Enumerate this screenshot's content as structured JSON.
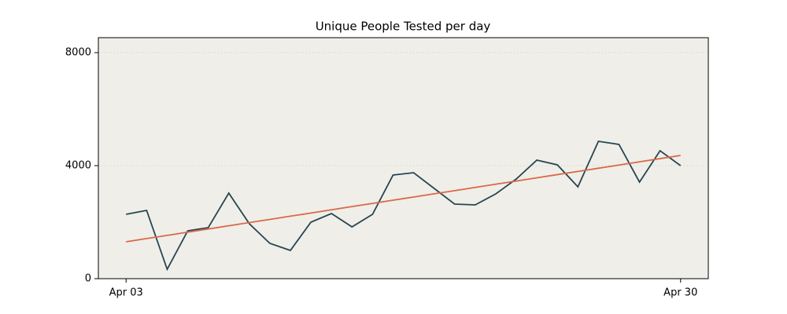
{
  "chart_data": {
    "type": "line",
    "title": "Unique People Tested per day",
    "categories": [
      "Apr 03",
      null,
      null,
      null,
      null,
      null,
      null,
      null,
      null,
      null,
      null,
      null,
      null,
      null,
      null,
      null,
      null,
      null,
      null,
      null,
      null,
      null,
      null,
      null,
      null,
      null,
      null,
      "Apr 30"
    ],
    "series": [
      {
        "color": "#264653",
        "values": [
          2278,
          2417,
          333,
          1694,
          1806,
          3028,
          1944,
          1250,
          1000,
          2000,
          2306,
          1833,
          2278,
          3667,
          3750,
          3194,
          2639,
          2611,
          3000,
          3528,
          4194,
          4028,
          3250,
          4861,
          4750,
          3417,
          4528,
          4000
        ]
      },
      {
        "color": "#d9694a",
        "values": [
          1306,
          1419,
          1532,
          1645,
          1759,
          1872,
          1985,
          2098,
          2211,
          2324,
          2437,
          2551,
          2664,
          2777,
          2890,
          3003,
          3116,
          3230,
          3343,
          3456,
          3569,
          3682,
          3795,
          3908,
          4022,
          4135,
          4248,
          4361
        ]
      }
    ],
    "xlim": [
      -1.35,
      28.35
    ],
    "ylim": [
      0,
      8528
    ],
    "yticks": [
      0,
      4000,
      8000
    ],
    "grid": true,
    "background": "#f0eee8"
  }
}
